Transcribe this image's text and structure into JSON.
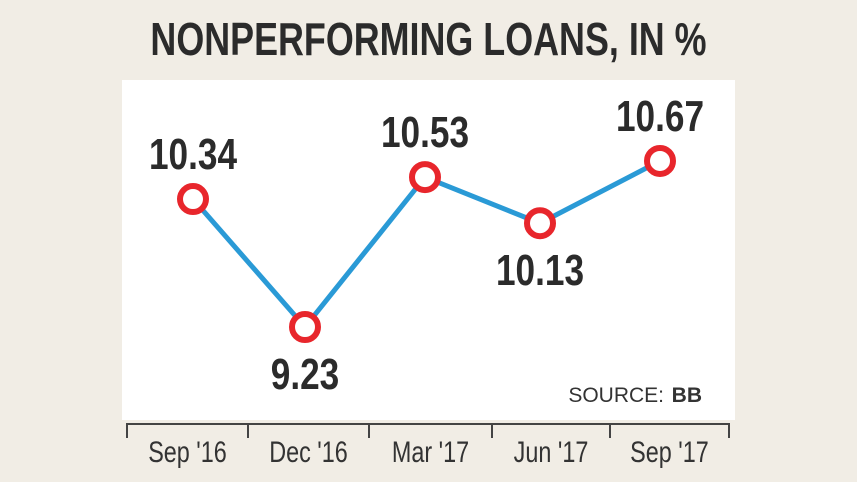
{
  "chart_data": {
    "type": "line",
    "title": "NONPERFORMING LOANS, IN %",
    "categories": [
      "Sep '16",
      "Dec '16",
      "Mar '17",
      "Jun '17",
      "Sep '17"
    ],
    "values": [
      10.34,
      9.23,
      10.53,
      10.13,
      10.67
    ],
    "data_labels": [
      "10.34",
      "9.23",
      "10.53",
      "10.13",
      "10.67"
    ],
    "source_label": "SOURCE:",
    "source_value": "BB",
    "grid": false,
    "line_color": "#2a9ad6",
    "marker_color": "#e8262c"
  }
}
